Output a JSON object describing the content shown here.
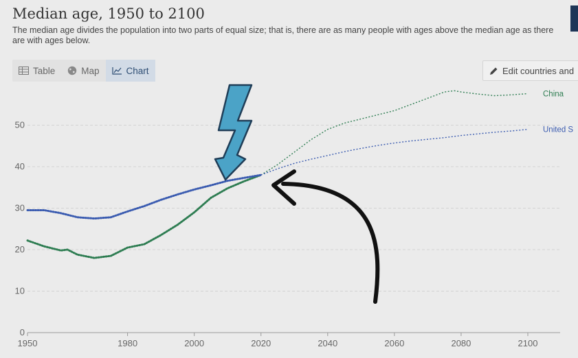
{
  "header": {
    "title": "Median age, 1950 to 2100",
    "subtitle": "The median age divides the population into two parts of equal size; that is, there are as many people with ages above the median age as there are with ages below."
  },
  "tabs": [
    {
      "label": "Table",
      "icon": "table-icon",
      "active": false
    },
    {
      "label": "Map",
      "icon": "globe-icon",
      "active": false
    },
    {
      "label": "Chart",
      "icon": "line-chart-icon",
      "active": true
    }
  ],
  "edit_button": {
    "label": "Edit countries and",
    "icon": "pencil-icon"
  },
  "colors": {
    "china": "#2e7d52",
    "usa": "#3a5bb0",
    "arrow": "#4ba3c7"
  },
  "chart_data": {
    "type": "line",
    "title": "Median age, 1950 to 2100",
    "xlim": [
      1950,
      2100
    ],
    "ylim": [
      0,
      55
    ],
    "xticks": [
      1950,
      1980,
      2000,
      2020,
      2040,
      2060,
      2080,
      2100
    ],
    "yticks": [
      0,
      10,
      20,
      30,
      40,
      50
    ],
    "grid": true,
    "projection_start": 2021,
    "series": [
      {
        "name": "China",
        "color": "#2e7d52",
        "points": [
          [
            1950,
            22.2
          ],
          [
            1955,
            20.8
          ],
          [
            1960,
            19.8
          ],
          [
            1962,
            20.0
          ],
          [
            1965,
            18.8
          ],
          [
            1970,
            18.0
          ],
          [
            1975,
            18.5
          ],
          [
            1980,
            20.5
          ],
          [
            1985,
            21.3
          ],
          [
            1990,
            23.5
          ],
          [
            1995,
            26.0
          ],
          [
            2000,
            29.0
          ],
          [
            2005,
            32.5
          ],
          [
            2010,
            34.8
          ],
          [
            2015,
            36.5
          ],
          [
            2020,
            38.0
          ],
          [
            2025,
            40.5
          ],
          [
            2030,
            43.5
          ],
          [
            2035,
            46.5
          ],
          [
            2040,
            49.0
          ],
          [
            2045,
            50.5
          ],
          [
            2050,
            51.5
          ],
          [
            2055,
            52.5
          ],
          [
            2060,
            53.5
          ],
          [
            2065,
            55.0
          ],
          [
            2070,
            56.5
          ],
          [
            2075,
            58.0
          ],
          [
            2078,
            58.3
          ],
          [
            2080,
            58.0
          ],
          [
            2085,
            57.5
          ],
          [
            2090,
            57.1
          ],
          [
            2095,
            57.3
          ],
          [
            2100,
            57.6
          ]
        ]
      },
      {
        "name": "United S",
        "color": "#3a5bb0",
        "points": [
          [
            1950,
            29.5
          ],
          [
            1955,
            29.5
          ],
          [
            1960,
            28.8
          ],
          [
            1965,
            27.8
          ],
          [
            1970,
            27.5
          ],
          [
            1975,
            27.8
          ],
          [
            1980,
            29.2
          ],
          [
            1985,
            30.5
          ],
          [
            1990,
            32.0
          ],
          [
            1995,
            33.3
          ],
          [
            2000,
            34.5
          ],
          [
            2005,
            35.5
          ],
          [
            2010,
            36.6
          ],
          [
            2015,
            37.3
          ],
          [
            2020,
            38.0
          ],
          [
            2025,
            39.5
          ],
          [
            2030,
            40.8
          ],
          [
            2035,
            41.8
          ],
          [
            2040,
            42.7
          ],
          [
            2045,
            43.6
          ],
          [
            2050,
            44.4
          ],
          [
            2055,
            45.1
          ],
          [
            2060,
            45.7
          ],
          [
            2065,
            46.2
          ],
          [
            2070,
            46.6
          ],
          [
            2075,
            47.0
          ],
          [
            2080,
            47.5
          ],
          [
            2085,
            47.9
          ],
          [
            2090,
            48.3
          ],
          [
            2095,
            48.6
          ],
          [
            2100,
            49.0
          ]
        ]
      }
    ]
  }
}
